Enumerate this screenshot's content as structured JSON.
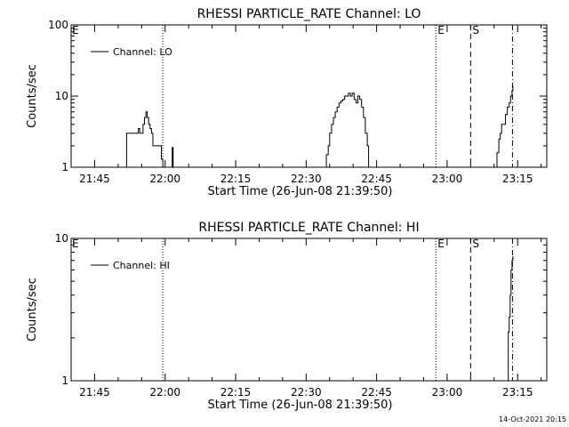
{
  "footer": {
    "timestamp": "14-Oct-2021 20:15"
  },
  "chart_data": [
    {
      "type": "line",
      "title": "RHESSI PARTICLE_RATE Channel: LO",
      "xlabel": "Start Time (26-Jun-08 21:39:50)",
      "ylabel": "Counts/sec",
      "yscale": "log",
      "ylim": [
        1,
        100
      ],
      "xlim_min": [
        40,
        97
      ],
      "x_ticks": [
        {
          "min": 45,
          "label": "21:45"
        },
        {
          "min": 60,
          "label": "22:00"
        },
        {
          "min": 75,
          "label": "22:15"
        },
        {
          "min": 90,
          "label": "22:30"
        },
        {
          "min": 105,
          "label": "22:45"
        },
        {
          "min": 120,
          "label": "23:00"
        },
        {
          "min": 135,
          "label": "23:15"
        }
      ],
      "y_ticks": [
        {
          "value": 1,
          "label": "1"
        },
        {
          "value": 10,
          "label": "10"
        },
        {
          "value": 100,
          "label": "100"
        }
      ],
      "grid": false,
      "legend": {
        "position": "top-left",
        "entries": [
          "Channel: LO"
        ]
      },
      "markers": [
        {
          "min": 59.5,
          "style": "dotted",
          "label": ""
        },
        {
          "min": 117.6,
          "style": "dotted",
          "label": "E"
        },
        {
          "min": 125.0,
          "style": "dashed",
          "label": "S"
        },
        {
          "min": 133.9,
          "style": "dashdot",
          "label": ""
        }
      ],
      "edge_label": "E",
      "series": [
        {
          "name": "Channel: LO",
          "segments": [
            [
              [
                51.0,
                1
              ],
              [
                51.8,
                3
              ],
              [
                53.0,
                3
              ],
              [
                54.0,
                3
              ],
              [
                54.3,
                3.5
              ],
              [
                54.6,
                3
              ],
              [
                55.0,
                3
              ],
              [
                55.3,
                4
              ],
              [
                55.6,
                5
              ],
              [
                55.9,
                6
              ],
              [
                56.2,
                5
              ],
              [
                56.5,
                4
              ],
              [
                56.8,
                3.5
              ],
              [
                57.1,
                3
              ],
              [
                57.4,
                2
              ],
              [
                58.0,
                2
              ],
              [
                58.6,
                2
              ],
              [
                59.2,
                1.3
              ],
              [
                59.5,
                1
              ]
            ],
            [
              [
                61.3,
                1
              ],
              [
                61.5,
                1.9
              ],
              [
                61.7,
                1
              ]
            ],
            [
              [
                94.0,
                1
              ],
              [
                94.3,
                1.5
              ],
              [
                94.7,
                2
              ],
              [
                95.0,
                3
              ],
              [
                95.4,
                4
              ],
              [
                95.8,
                5
              ],
              [
                96.2,
                6
              ],
              [
                96.6,
                7
              ],
              [
                97.0,
                8
              ],
              [
                97.4,
                8.5
              ],
              [
                97.8,
                9
              ],
              [
                98.2,
                10
              ],
              [
                98.6,
                10
              ],
              [
                99.0,
                11
              ],
              [
                99.4,
                10
              ],
              [
                99.8,
                11
              ],
              [
                100.2,
                9
              ],
              [
                100.6,
                8
              ],
              [
                101.0,
                10
              ],
              [
                101.4,
                9
              ],
              [
                101.8,
                7
              ],
              [
                102.2,
                5
              ],
              [
                102.6,
                3
              ],
              [
                103.0,
                2
              ],
              [
                103.3,
                1
              ]
            ],
            [
              [
                130.2,
                1
              ],
              [
                130.6,
                1.6
              ],
              [
                131.0,
                2.5
              ],
              [
                131.3,
                3
              ],
              [
                131.6,
                4
              ],
              [
                132.0,
                4
              ],
              [
                132.4,
                5.5
              ],
              [
                132.8,
                7
              ],
              [
                133.2,
                8
              ],
              [
                133.5,
                10
              ],
              [
                133.8,
                12
              ],
              [
                134.0,
                14
              ]
            ]
          ]
        }
      ]
    },
    {
      "type": "line",
      "title": "RHESSI PARTICLE_RATE Channel: HI",
      "xlabel": "Start Time (26-Jun-08 21:39:50)",
      "ylabel": "Counts/sec",
      "yscale": "log",
      "ylim": [
        1,
        10
      ],
      "x_ticks": [
        {
          "min": 45,
          "label": "21:45"
        },
        {
          "min": 60,
          "label": "22:00"
        },
        {
          "min": 75,
          "label": "22:15"
        },
        {
          "min": 90,
          "label": "22:30"
        },
        {
          "min": 105,
          "label": "22:45"
        },
        {
          "min": 120,
          "label": "23:00"
        },
        {
          "min": 135,
          "label": "23:15"
        }
      ],
      "y_ticks": [
        {
          "value": 1,
          "label": "1"
        },
        {
          "value": 10,
          "label": "10"
        }
      ],
      "grid": false,
      "legend": {
        "position": "top-left",
        "entries": [
          "Channel: HI"
        ]
      },
      "markers": [
        {
          "min": 59.5,
          "style": "dotted",
          "label": ""
        },
        {
          "min": 117.6,
          "style": "dotted",
          "label": "E"
        },
        {
          "min": 125.0,
          "style": "dashed",
          "label": "S"
        },
        {
          "min": 133.9,
          "style": "dashdot",
          "label": ""
        }
      ],
      "edge_label": "E",
      "series": [
        {
          "name": "Channel: HI",
          "segments": [
            [
              [
                132.8,
                1
              ],
              [
                133.0,
                2.2
              ],
              [
                133.2,
                2.8
              ],
              [
                133.4,
                4
              ],
              [
                133.6,
                6
              ],
              [
                133.8,
                7
              ],
              [
                134.0,
                7.5
              ]
            ]
          ]
        }
      ]
    }
  ]
}
